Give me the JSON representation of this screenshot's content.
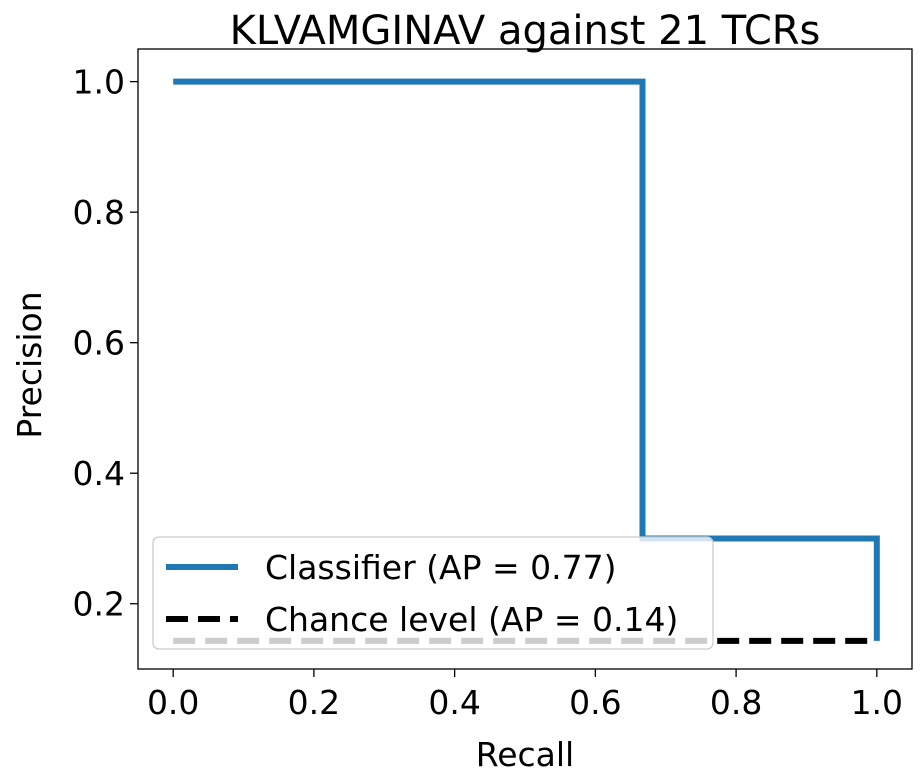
{
  "chart_data": {
    "type": "line",
    "title": "KLVAMGINAV against 21 TCRs",
    "xlabel": "Recall",
    "ylabel": "Precision",
    "xlim": [
      -0.05,
      1.05
    ],
    "ylim": [
      0.1,
      1.05
    ],
    "xticks": [
      0.0,
      0.2,
      0.4,
      0.6,
      0.8,
      1.0
    ],
    "xtick_labels": [
      "0.0",
      "0.2",
      "0.4",
      "0.6",
      "0.8",
      "1.0"
    ],
    "yticks": [
      0.2,
      0.4,
      0.6,
      0.8,
      1.0
    ],
    "ytick_labels": [
      "0.2",
      "0.4",
      "0.6",
      "0.8",
      "1.0"
    ],
    "grid": false,
    "legend_position": "lower-left",
    "series": [
      {
        "name": "Classifier (AP = 0.77)",
        "color": "#1f77b4",
        "style": "solid",
        "step": "post",
        "x": [
          0.0,
          0.667,
          0.667,
          1.0,
          1.0
        ],
        "y": [
          1.0,
          1.0,
          0.3,
          0.3,
          0.143
        ]
      },
      {
        "name": "Chance level (AP = 0.14)",
        "color": "#000000",
        "style": "dashed",
        "x": [
          0.0,
          1.0
        ],
        "y": [
          0.143,
          0.143
        ]
      }
    ]
  }
}
